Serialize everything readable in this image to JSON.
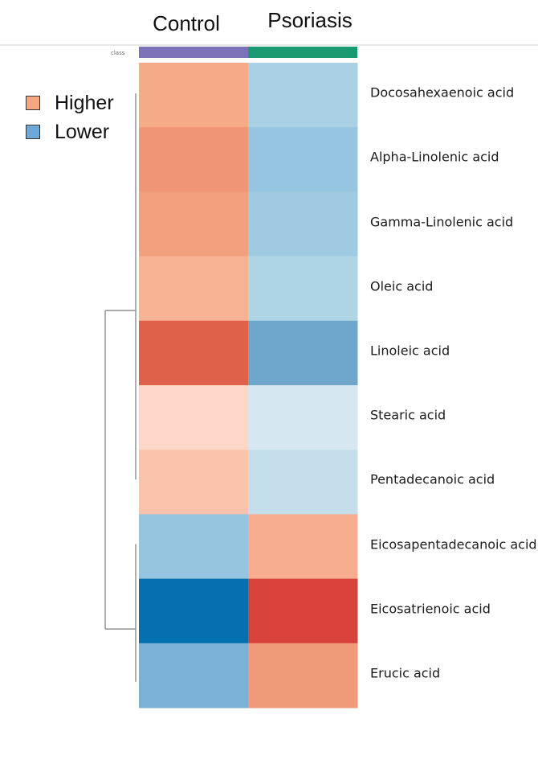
{
  "chart_data": {
    "type": "heatmap",
    "columns": [
      "Control",
      "Psoriasis"
    ],
    "class_label": "class",
    "class_colors": [
      "#7b72b8",
      "#1a9a72"
    ],
    "rows": [
      "Docosahexaenoic acid",
      "Alpha-Linolenic acid",
      "Gamma-Linolenic acid",
      "Oleic acid",
      "Linoleic acid",
      "Stearic acid",
      "Pentadecanoic acid",
      "Eicosapentadecanoic acid",
      "Eicosatrienoic acid",
      "Erucic acid"
    ],
    "cell_colors": [
      [
        "#f5aa88",
        "#a9d0e5"
      ],
      [
        "#f09676",
        "#95c5e0"
      ],
      [
        "#f3a07e",
        "#a0cae2"
      ],
      [
        "#f7b193",
        "#afd4e6"
      ],
      [
        "#df614a",
        "#6fa6cc"
      ],
      [
        "#fdd8c8",
        "#d7e7f2"
      ],
      [
        "#fbc3ab",
        "#c4deeb"
      ],
      [
        "#95c5de",
        "#f6ae8e"
      ],
      [
        "#0570b0",
        "#d7433a"
      ],
      [
        "#7bb1d4",
        "#f19a79"
      ]
    ],
    "legend": [
      {
        "label": "Higher",
        "color": "#f4a582"
      },
      {
        "label": "Lower",
        "color": "#6fa8d8"
      }
    ],
    "dendrogram_color": "#9a9a9a",
    "grid": false,
    "legend_position": "top-left"
  }
}
